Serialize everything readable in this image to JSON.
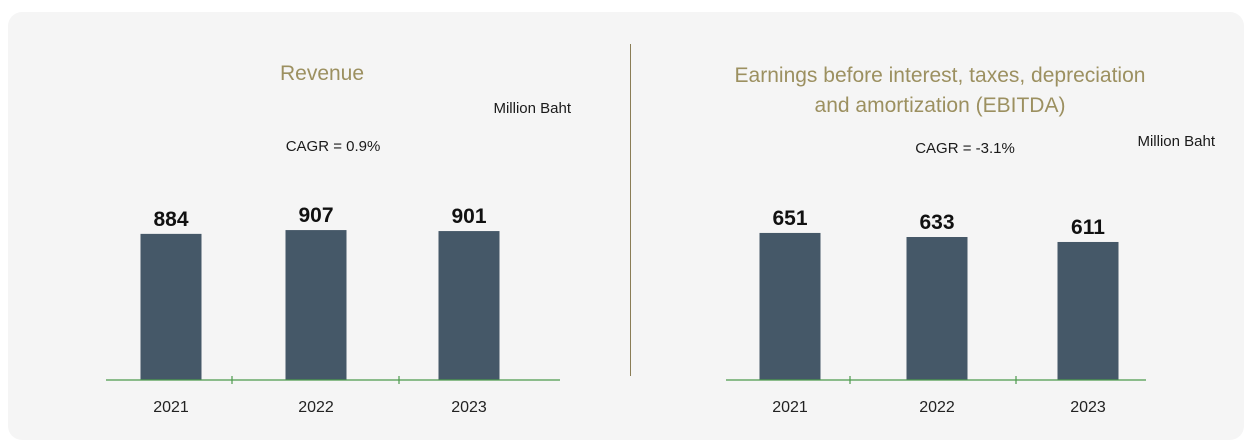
{
  "charts": [
    {
      "title_lines": [
        "Revenue"
      ],
      "unit": "Million Baht",
      "cagr": "CAGR = 0.9%"
    },
    {
      "title_lines": [
        "Earnings before interest, taxes, depreciation",
        "and amortization (EBITDA)"
      ],
      "unit": "Million Baht",
      "cagr": "CAGR = -3.1%"
    }
  ],
  "colors": {
    "bar": "#455868",
    "axis": "#4c9a4c",
    "title": "#9c9060",
    "background": "#f5f5f5",
    "divider": "#8a7d55"
  },
  "chart_data": [
    {
      "type": "bar",
      "title": "Revenue",
      "ylabel": "Million Baht",
      "annotation": "CAGR = 0.9%",
      "categories": [
        "2021",
        "2022",
        "2023"
      ],
      "values": [
        884,
        907,
        901
      ],
      "grid": false
    },
    {
      "type": "bar",
      "title": "Earnings before interest, taxes, depreciation and amortization (EBITDA)",
      "ylabel": "Million Baht",
      "annotation": "CAGR = -3.1%",
      "categories": [
        "2021",
        "2022",
        "2023"
      ],
      "values": [
        651,
        633,
        611
      ],
      "grid": false
    }
  ]
}
